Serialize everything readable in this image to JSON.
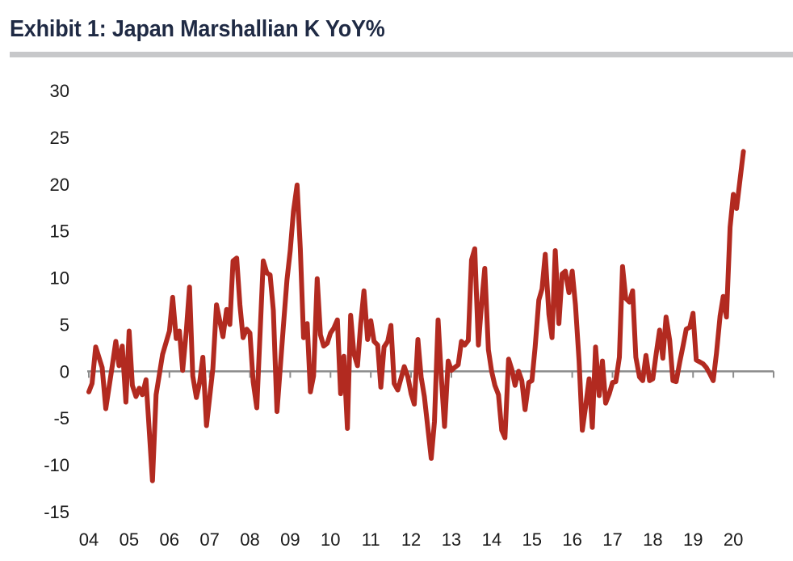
{
  "chart_data": {
    "type": "line",
    "title": "Exhibit 1: Japan Marshallian K YoY%",
    "xlabel": "",
    "ylabel": "",
    "ylim": [
      -15,
      30
    ],
    "yticks": [
      "30",
      "25",
      "20",
      "15",
      "10",
      "5",
      "0",
      "-5",
      "-10",
      "-15"
    ],
    "xlim": [
      2004,
      2021
    ],
    "xticks": [
      "04",
      "05",
      "06",
      "07",
      "08",
      "09",
      "10",
      "11",
      "12",
      "13",
      "14",
      "15",
      "16",
      "17",
      "18",
      "19",
      "20"
    ],
    "grid": false,
    "zero_line": true,
    "series": [
      {
        "color": "#b22a20",
        "points": [
          [
            2004.0,
            -2.2
          ],
          [
            2004.08,
            -1.3
          ],
          [
            2004.17,
            2.6
          ],
          [
            2004.33,
            0.4
          ],
          [
            2004.42,
            -4.0
          ],
          [
            2004.58,
            0.5
          ],
          [
            2004.67,
            3.2
          ],
          [
            2004.75,
            0.6
          ],
          [
            2004.83,
            2.7
          ],
          [
            2004.92,
            -3.3
          ],
          [
            2005.0,
            4.3
          ],
          [
            2005.08,
            -1.5
          ],
          [
            2005.17,
            -2.7
          ],
          [
            2005.25,
            -1.8
          ],
          [
            2005.33,
            -2.5
          ],
          [
            2005.42,
            -0.9
          ],
          [
            2005.58,
            -11.7
          ],
          [
            2005.67,
            -2.5
          ],
          [
            2005.83,
            1.8
          ],
          [
            2006.0,
            4.3
          ],
          [
            2006.08,
            7.9
          ],
          [
            2006.17,
            3.5
          ],
          [
            2006.25,
            4.3
          ],
          [
            2006.33,
            0.1
          ],
          [
            2006.42,
            4.3
          ],
          [
            2006.5,
            9.0
          ],
          [
            2006.58,
            -0.5
          ],
          [
            2006.67,
            -2.8
          ],
          [
            2006.75,
            -1.2
          ],
          [
            2006.83,
            1.5
          ],
          [
            2006.92,
            -5.8
          ],
          [
            2007.08,
            0.3
          ],
          [
            2007.17,
            7.1
          ],
          [
            2007.33,
            3.7
          ],
          [
            2007.42,
            6.6
          ],
          [
            2007.5,
            5.0
          ],
          [
            2007.58,
            11.8
          ],
          [
            2007.67,
            12.1
          ],
          [
            2007.75,
            7.1
          ],
          [
            2007.83,
            3.6
          ],
          [
            2007.92,
            4.5
          ],
          [
            2008.0,
            4.1
          ],
          [
            2008.08,
            -1.1
          ],
          [
            2008.17,
            -3.9
          ],
          [
            2008.33,
            11.8
          ],
          [
            2008.42,
            10.5
          ],
          [
            2008.5,
            10.3
          ],
          [
            2008.58,
            6.5
          ],
          [
            2008.67,
            -4.3
          ],
          [
            2008.83,
            4.8
          ],
          [
            2008.92,
            9.8
          ],
          [
            2009.0,
            12.9
          ],
          [
            2009.08,
            17.1
          ],
          [
            2009.17,
            19.9
          ],
          [
            2009.25,
            13.1
          ],
          [
            2009.33,
            3.6
          ],
          [
            2009.42,
            5.1
          ],
          [
            2009.5,
            -2.2
          ],
          [
            2009.58,
            -0.5
          ],
          [
            2009.67,
            9.9
          ],
          [
            2009.75,
            3.9
          ],
          [
            2009.83,
            2.7
          ],
          [
            2009.92,
            3.0
          ],
          [
            2010.0,
            4.1
          ],
          [
            2010.08,
            4.6
          ],
          [
            2010.17,
            5.5
          ],
          [
            2010.25,
            -2.4
          ],
          [
            2010.33,
            1.6
          ],
          [
            2010.42,
            -6.1
          ],
          [
            2010.5,
            6.0
          ],
          [
            2010.58,
            1.9
          ],
          [
            2010.67,
            0.6
          ],
          [
            2010.75,
            5.1
          ],
          [
            2010.83,
            8.6
          ],
          [
            2010.92,
            3.4
          ],
          [
            2011.0,
            5.4
          ],
          [
            2011.08,
            3.2
          ],
          [
            2011.17,
            2.8
          ],
          [
            2011.25,
            -1.7
          ],
          [
            2011.33,
            2.6
          ],
          [
            2011.42,
            3.2
          ],
          [
            2011.5,
            4.9
          ],
          [
            2011.58,
            -1.3
          ],
          [
            2011.67,
            -2.0
          ],
          [
            2011.83,
            0.5
          ],
          [
            2011.92,
            -0.6
          ],
          [
            2012.0,
            -2.4
          ],
          [
            2012.08,
            -3.5
          ],
          [
            2012.17,
            3.4
          ],
          [
            2012.25,
            -0.6
          ],
          [
            2012.33,
            -2.7
          ],
          [
            2012.5,
            -9.3
          ],
          [
            2012.58,
            -5.4
          ],
          [
            2012.67,
            5.5
          ],
          [
            2012.75,
            -0.6
          ],
          [
            2012.83,
            -5.9
          ],
          [
            2012.92,
            1.1
          ],
          [
            2013.0,
            0.1
          ],
          [
            2013.08,
            0.4
          ],
          [
            2013.17,
            0.7
          ],
          [
            2013.25,
            3.2
          ],
          [
            2013.33,
            2.8
          ],
          [
            2013.42,
            3.3
          ],
          [
            2013.5,
            11.9
          ],
          [
            2013.58,
            13.1
          ],
          [
            2013.67,
            2.8
          ],
          [
            2013.75,
            7.3
          ],
          [
            2013.83,
            11.0
          ],
          [
            2013.92,
            2.3
          ],
          [
            2014.0,
            0.0
          ],
          [
            2014.08,
            -1.5
          ],
          [
            2014.17,
            -2.5
          ],
          [
            2014.25,
            -6.3
          ],
          [
            2014.33,
            -7.1
          ],
          [
            2014.42,
            1.3
          ],
          [
            2014.5,
            0.2
          ],
          [
            2014.58,
            -1.5
          ],
          [
            2014.67,
            0.0
          ],
          [
            2014.75,
            -1.0
          ],
          [
            2014.83,
            -4.1
          ],
          [
            2014.92,
            -1.2
          ],
          [
            2015.0,
            -1.0
          ],
          [
            2015.08,
            2.6
          ],
          [
            2015.17,
            7.6
          ],
          [
            2015.25,
            8.8
          ],
          [
            2015.33,
            12.5
          ],
          [
            2015.42,
            6.1
          ],
          [
            2015.5,
            3.6
          ],
          [
            2015.58,
            12.9
          ],
          [
            2015.67,
            5.1
          ],
          [
            2015.75,
            10.4
          ],
          [
            2015.83,
            10.7
          ],
          [
            2015.92,
            8.4
          ],
          [
            2016.0,
            10.7
          ],
          [
            2016.08,
            7.1
          ],
          [
            2016.17,
            1.1
          ],
          [
            2016.25,
            -6.3
          ],
          [
            2016.33,
            -3.9
          ],
          [
            2016.42,
            -0.8
          ],
          [
            2016.5,
            -6.0
          ],
          [
            2016.58,
            2.6
          ],
          [
            2016.67,
            -2.6
          ],
          [
            2016.75,
            1.1
          ],
          [
            2016.83,
            -3.4
          ],
          [
            2016.92,
            -2.4
          ],
          [
            2017.0,
            -1.2
          ],
          [
            2017.08,
            -1.1
          ],
          [
            2017.17,
            1.5
          ],
          [
            2017.25,
            11.2
          ],
          [
            2017.33,
            7.8
          ],
          [
            2017.42,
            7.4
          ],
          [
            2017.5,
            8.6
          ],
          [
            2017.58,
            1.5
          ],
          [
            2017.67,
            -0.6
          ],
          [
            2017.75,
            -1.0
          ],
          [
            2017.83,
            1.7
          ],
          [
            2017.92,
            -1.0
          ],
          [
            2018.0,
            -0.8
          ],
          [
            2018.08,
            1.7
          ],
          [
            2018.17,
            4.4
          ],
          [
            2018.25,
            1.4
          ],
          [
            2018.33,
            5.8
          ],
          [
            2018.42,
            3.3
          ],
          [
            2018.5,
            -1.0
          ],
          [
            2018.58,
            -1.1
          ],
          [
            2018.67,
            1.0
          ],
          [
            2018.75,
            2.7
          ],
          [
            2018.83,
            4.5
          ],
          [
            2018.92,
            4.7
          ],
          [
            2019.0,
            6.2
          ],
          [
            2019.08,
            1.2
          ],
          [
            2019.17,
            1.0
          ],
          [
            2019.25,
            0.8
          ],
          [
            2019.33,
            0.4
          ],
          [
            2019.42,
            -0.3
          ],
          [
            2019.5,
            -1.0
          ],
          [
            2019.58,
            1.9
          ],
          [
            2019.67,
            5.9
          ],
          [
            2019.75,
            8.0
          ],
          [
            2019.83,
            5.8
          ],
          [
            2019.92,
            15.4
          ],
          [
            2020.0,
            18.9
          ],
          [
            2020.08,
            17.4
          ],
          [
            2020.25,
            23.5
          ]
        ]
      }
    ]
  }
}
